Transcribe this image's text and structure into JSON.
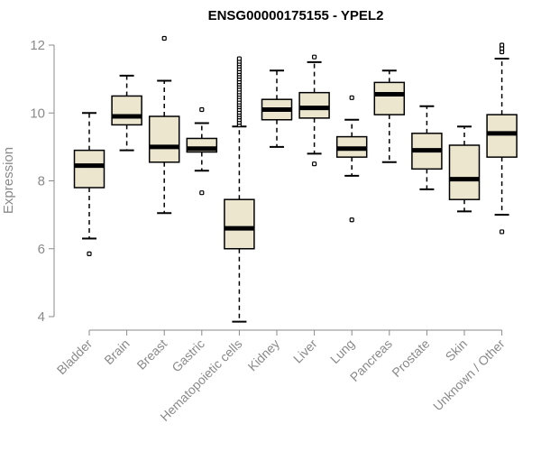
{
  "chart_data": {
    "type": "boxplot",
    "title": "ENSG00000175155 - YPEL2",
    "xlabel": "",
    "ylabel": "Expression",
    "ylim": [
      4,
      12
    ],
    "yticks": [
      4,
      6,
      8,
      10,
      12
    ],
    "grid": false,
    "box_fill": "#ede6cf",
    "box_stroke": "#000000",
    "categories": [
      "Bladder",
      "Brain",
      "Breast",
      "Gastric",
      "Hematopoietic cells",
      "Kidney",
      "Liver",
      "Lung",
      "Pancreas",
      "Prostate",
      "Skin",
      "Unknown / Other"
    ],
    "boxes": [
      {
        "category": "Bladder",
        "whisker_low": 6.3,
        "q1": 7.8,
        "median": 8.45,
        "q3": 8.9,
        "whisker_high": 10.0,
        "outliers": [
          5.85
        ]
      },
      {
        "category": "Brain",
        "whisker_low": 8.9,
        "q1": 9.65,
        "median": 9.9,
        "q3": 10.5,
        "whisker_high": 11.1,
        "outliers": []
      },
      {
        "category": "Breast",
        "whisker_low": 7.05,
        "q1": 8.55,
        "median": 9.0,
        "q3": 9.9,
        "whisker_high": 10.95,
        "outliers": [
          12.2
        ]
      },
      {
        "category": "Gastric",
        "whisker_low": 8.3,
        "q1": 8.85,
        "median": 8.95,
        "q3": 9.25,
        "whisker_high": 9.7,
        "outliers": [
          7.65,
          10.1
        ]
      },
      {
        "category": "Hematopoietic cells",
        "whisker_low": 3.85,
        "q1": 6.0,
        "median": 6.6,
        "q3": 7.45,
        "whisker_high": 9.6,
        "outliers": [
          9.65,
          9.72,
          9.8,
          9.88,
          9.95,
          10.02,
          10.1,
          10.18,
          10.25,
          10.32,
          10.4,
          10.48,
          10.55,
          10.62,
          10.7,
          10.78,
          10.85,
          10.92,
          11.0,
          11.08,
          11.15,
          11.22,
          11.3,
          11.38,
          11.45,
          11.52,
          11.6
        ]
      },
      {
        "category": "Kidney",
        "whisker_low": 9.0,
        "q1": 9.8,
        "median": 10.1,
        "q3": 10.4,
        "whisker_high": 11.25,
        "outliers": []
      },
      {
        "category": "Liver",
        "whisker_low": 8.8,
        "q1": 9.85,
        "median": 10.15,
        "q3": 10.6,
        "whisker_high": 11.5,
        "outliers": [
          8.5,
          11.65
        ]
      },
      {
        "category": "Lung",
        "whisker_low": 8.15,
        "q1": 8.7,
        "median": 8.95,
        "q3": 9.3,
        "whisker_high": 9.8,
        "outliers": [
          6.85,
          10.45
        ]
      },
      {
        "category": "Pancreas",
        "whisker_low": 8.55,
        "q1": 9.95,
        "median": 10.55,
        "q3": 10.9,
        "whisker_high": 11.25,
        "outliers": []
      },
      {
        "category": "Prostate",
        "whisker_low": 7.75,
        "q1": 8.35,
        "median": 8.9,
        "q3": 9.4,
        "whisker_high": 10.2,
        "outliers": []
      },
      {
        "category": "Skin",
        "whisker_low": 7.1,
        "q1": 7.45,
        "median": 8.05,
        "q3": 9.05,
        "whisker_high": 9.6,
        "outliers": []
      },
      {
        "category": "Unknown / Other",
        "whisker_low": 7.0,
        "q1": 8.7,
        "median": 9.4,
        "q3": 9.95,
        "whisker_high": 11.6,
        "outliers": [
          6.5,
          11.8,
          11.9,
          12.0
        ]
      }
    ]
  }
}
